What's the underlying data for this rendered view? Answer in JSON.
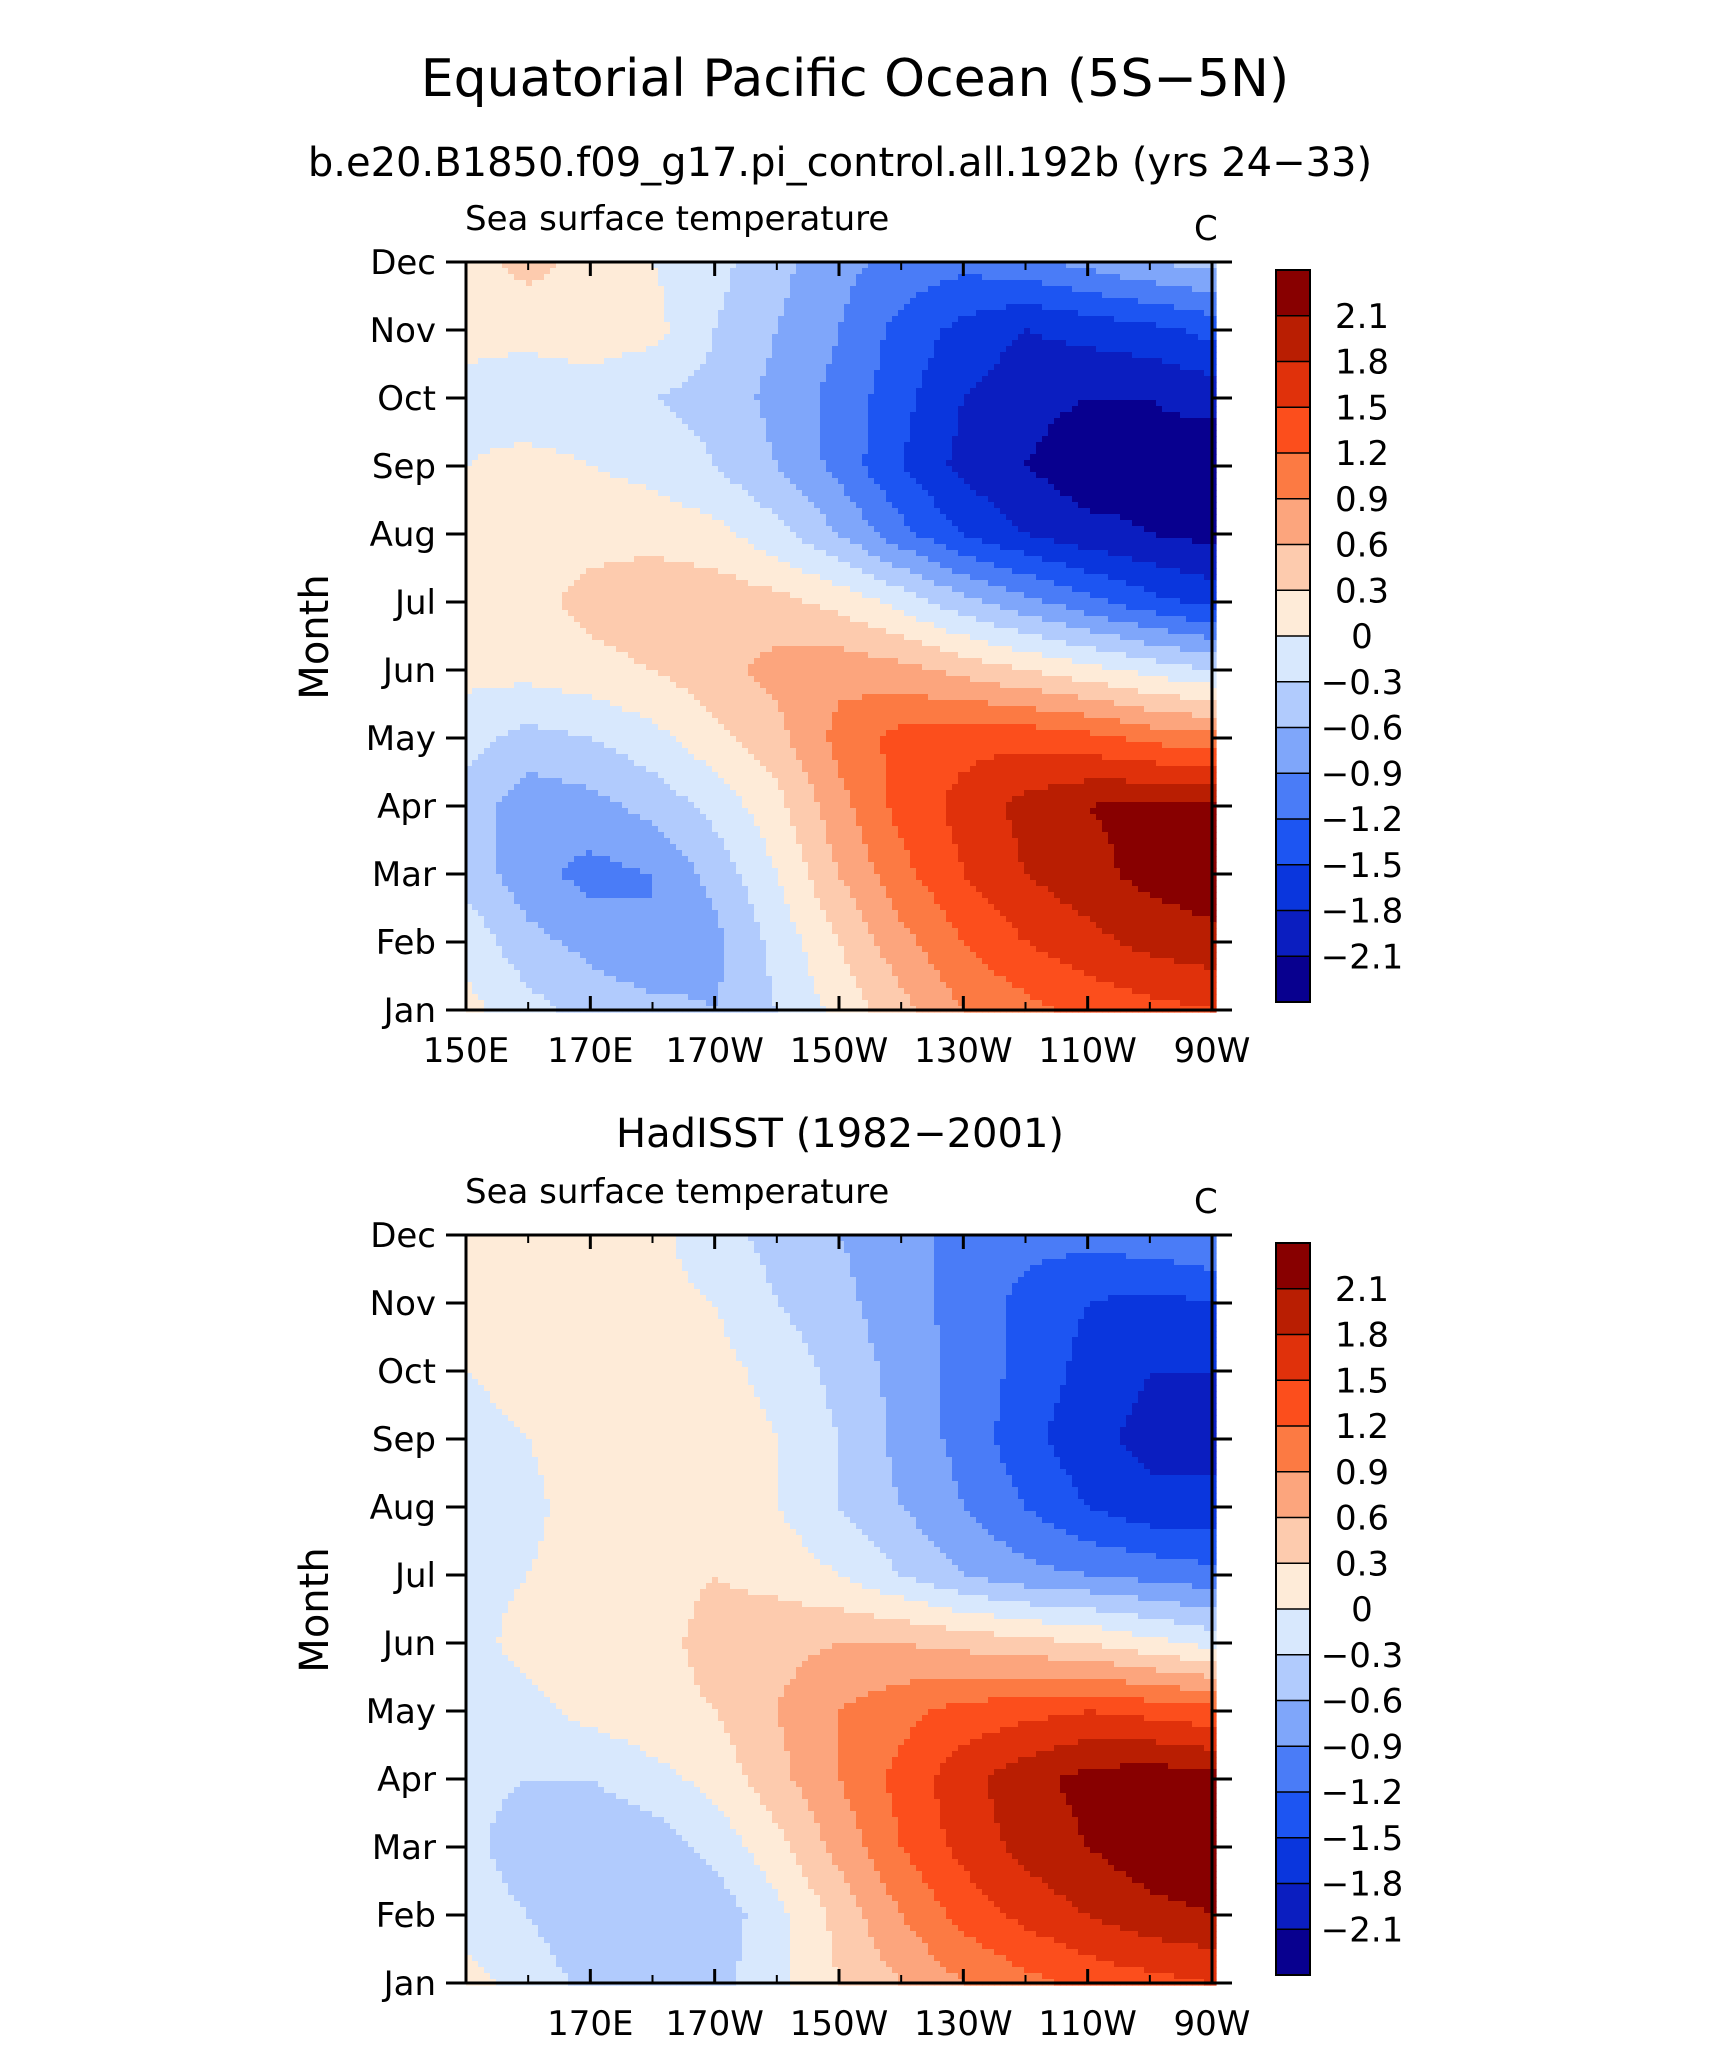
{
  "figure": {
    "title": "Equatorial Pacific Ocean (5S−5N)"
  },
  "palette": {
    "levels": [
      -2.1,
      -1.8,
      -1.5,
      -1.2,
      -0.9,
      -0.6,
      -0.3,
      0,
      0.3,
      0.6,
      0.9,
      1.2,
      1.5,
      1.8,
      2.1
    ],
    "level_labels": [
      "2.1",
      "1.8",
      "1.5",
      "1.2",
      "0.9",
      "0.6",
      "0.3",
      "0",
      "−0.3",
      "−0.6",
      "−0.9",
      "−1.2",
      "−1.5",
      "−1.8",
      "−2.1"
    ],
    "colors": [
      "#08008f",
      "#0b1ec0",
      "#0a36dd",
      "#1d55f2",
      "#4a7cf7",
      "#7fa6fa",
      "#b1cbfd",
      "#d8e8fd",
      "#feebd8",
      "#fdcbae",
      "#fca57d",
      "#fc7a43",
      "#fc4e1c",
      "#e0310b",
      "#b91e02",
      "#880000"
    ]
  },
  "chart_data": [
    {
      "type": "heatmap",
      "name": "model",
      "title": "b.e20.B1850.f09_g17.pi_control.all.192b (yrs 24−33)",
      "left_label": "Sea surface temperature",
      "right_label": "C",
      "ylabel": "Month",
      "xlim": [
        150,
        270
      ],
      "x_ticks": [
        150,
        170,
        190,
        210,
        230,
        250,
        270
      ],
      "x_tick_labels": [
        "150E",
        "170E",
        "170W",
        "150W",
        "130W",
        "110W",
        "90W"
      ],
      "y_tick_labels": [
        "Jan",
        "Feb",
        "Mar",
        "Apr",
        "May",
        "Jun",
        "Jul",
        "Aug",
        "Sep",
        "Oct",
        "Nov",
        "Dec"
      ],
      "x": [
        150,
        160,
        170,
        180,
        190,
        200,
        210,
        220,
        230,
        240,
        250,
        260,
        270
      ],
      "z": [
        [
          0.1,
          -0.2,
          -0.4,
          -0.5,
          -0.6,
          -0.3,
          0.1,
          0.5,
          0.9,
          1.1,
          1.3,
          1.4,
          1.5
        ],
        [
          -0.1,
          -0.5,
          -0.7,
          -0.9,
          -0.7,
          -0.2,
          0.3,
          0.8,
          1.2,
          1.5,
          1.7,
          1.9,
          2.0
        ],
        [
          -0.4,
          -0.8,
          -1.0,
          -0.9,
          -0.5,
          0.0,
          0.6,
          1.1,
          1.5,
          1.8,
          2.0,
          2.2,
          2.3
        ],
        [
          -0.4,
          -0.8,
          -0.7,
          -0.5,
          -0.2,
          0.2,
          0.8,
          1.3,
          1.6,
          1.9,
          2.1,
          2.2,
          2.2
        ],
        [
          -0.2,
          -0.4,
          -0.3,
          -0.1,
          0.2,
          0.5,
          1.0,
          1.3,
          1.4,
          1.4,
          1.3,
          1.1,
          1.0
        ],
        [
          0.1,
          0.1,
          0.2,
          0.3,
          0.5,
          0.7,
          0.8,
          0.7,
          0.5,
          0.3,
          0.1,
          -0.1,
          -0.3
        ],
        [
          0.1,
          0.2,
          0.4,
          0.5,
          0.5,
          0.4,
          0.2,
          -0.1,
          -0.5,
          -0.8,
          -1.1,
          -1.4,
          -1.6
        ],
        [
          0.1,
          0.2,
          0.2,
          0.2,
          0.1,
          -0.2,
          -0.6,
          -1.1,
          -1.5,
          -1.8,
          -2.0,
          -2.1,
          -2.2
        ],
        [
          0.0,
          0.1,
          0.0,
          -0.1,
          -0.3,
          -0.6,
          -1.0,
          -1.5,
          -1.9,
          -2.1,
          -2.3,
          -2.2,
          -2.3
        ],
        [
          -0.1,
          -0.2,
          -0.2,
          -0.3,
          -0.4,
          -0.7,
          -1.0,
          -1.4,
          -1.8,
          -2.0,
          -2.1,
          -2.1,
          -2.0
        ],
        [
          0.1,
          0.1,
          0.2,
          0.1,
          -0.3,
          -0.6,
          -0.9,
          -1.3,
          -1.6,
          -1.8,
          -1.7,
          -1.6,
          -1.4
        ],
        [
          0.2,
          0.4,
          0.2,
          0.0,
          -0.2,
          -0.5,
          -0.8,
          -1.0,
          -1.1,
          -1.0,
          -0.8,
          -0.6,
          -0.5
        ]
      ]
    },
    {
      "type": "heatmap",
      "name": "obs",
      "title": "HadISST (1982−2001)",
      "left_label": "Sea surface temperature",
      "right_label": "C",
      "ylabel": "Month",
      "xlim": [
        150,
        270
      ],
      "x_ticks": [
        170,
        190,
        210,
        230,
        250,
        270
      ],
      "x_tick_labels": [
        "170E",
        "170W",
        "150W",
        "130W",
        "110W",
        "90W"
      ],
      "y_tick_labels": [
        "Jan",
        "Feb",
        "Mar",
        "Apr",
        "May",
        "Jun",
        "Jul",
        "Aug",
        "Sep",
        "Oct",
        "Nov",
        "Dec"
      ],
      "x": [
        150,
        160,
        170,
        180,
        190,
        200,
        210,
        220,
        230,
        240,
        250,
        260,
        270
      ],
      "z": [
        [
          0.1,
          -0.1,
          -0.4,
          -0.5,
          -0.4,
          -0.1,
          0.3,
          0.6,
          0.9,
          1.1,
          1.3,
          1.4,
          1.5
        ],
        [
          -0.1,
          -0.3,
          -0.6,
          -0.6,
          -0.5,
          -0.1,
          0.4,
          0.9,
          1.3,
          1.6,
          1.8,
          2.0,
          2.1
        ],
        [
          -0.2,
          -0.5,
          -0.6,
          -0.5,
          -0.2,
          0.2,
          0.7,
          1.2,
          1.6,
          1.9,
          2.1,
          2.3,
          2.3
        ],
        [
          -0.2,
          -0.3,
          -0.3,
          -0.1,
          0.1,
          0.5,
          0.9,
          1.3,
          1.7,
          2.0,
          2.2,
          2.3,
          2.2
        ],
        [
          -0.2,
          -0.1,
          0.1,
          0.2,
          0.3,
          0.6,
          0.9,
          1.1,
          1.3,
          1.4,
          1.5,
          1.4,
          1.3
        ],
        [
          -0.1,
          0.1,
          0.2,
          0.2,
          0.4,
          0.5,
          0.6,
          0.6,
          0.5,
          0.4,
          0.3,
          0.1,
          -0.1
        ],
        [
          -0.1,
          0.0,
          0.2,
          0.2,
          0.3,
          0.2,
          0.0,
          -0.3,
          -0.6,
          -0.8,
          -0.9,
          -1.0,
          -1.1
        ],
        [
          -0.2,
          -0.1,
          0.2,
          0.2,
          0.2,
          0.0,
          -0.3,
          -0.6,
          -0.9,
          -1.2,
          -1.5,
          -1.7,
          -1.7
        ],
        [
          -0.1,
          0.0,
          0.2,
          0.3,
          0.2,
          0.0,
          -0.3,
          -0.7,
          -1.0,
          -1.4,
          -1.7,
          -1.9,
          -1.9
        ],
        [
          0.0,
          0.1,
          0.2,
          0.2,
          0.1,
          -0.1,
          -0.4,
          -0.7,
          -1.0,
          -1.3,
          -1.6,
          -1.8,
          -1.8
        ],
        [
          0.1,
          0.1,
          0.1,
          0.1,
          0.0,
          -0.3,
          -0.5,
          -0.8,
          -1.0,
          -1.3,
          -1.5,
          -1.6,
          -1.5
        ],
        [
          0.1,
          0.1,
          0.1,
          0.1,
          -0.2,
          -0.4,
          -0.6,
          -0.8,
          -1.0,
          -1.1,
          -1.1,
          -1.0,
          -0.9
        ]
      ]
    }
  ]
}
